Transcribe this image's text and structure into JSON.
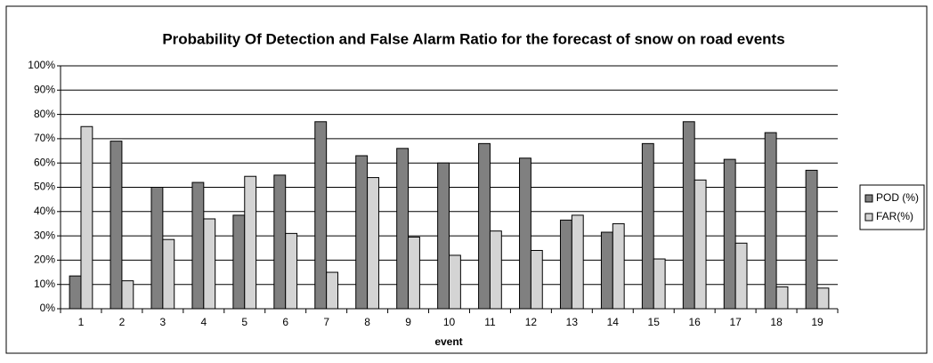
{
  "chart_data": {
    "type": "bar",
    "title": "Probability Of Detection and False Alarm Ratio for the forecast of snow on road events",
    "x_label": "event",
    "categories": [
      "1",
      "2",
      "3",
      "4",
      "5",
      "6",
      "7",
      "8",
      "9",
      "10",
      "11",
      "12",
      "13",
      "14",
      "15",
      "16",
      "17",
      "18",
      "19"
    ],
    "series": [
      {
        "name": "POD (%)",
        "color": "#808080",
        "values": [
          13.5,
          69,
          50,
          52,
          38.5,
          55,
          77,
          63,
          66,
          60,
          68,
          62,
          36.5,
          31.5,
          68,
          77,
          61.5,
          72.5,
          57
        ]
      },
      {
        "name": "FAR(%)",
        "color": "#d4d4d4",
        "values": [
          75,
          11.5,
          28.5,
          37,
          54.5,
          31,
          15,
          54,
          29.5,
          22,
          32,
          24,
          38.5,
          35,
          20.5,
          53,
          27,
          9,
          8.5
        ]
      }
    ],
    "ylim": [
      0,
      100
    ],
    "yticks": [
      {
        "value": 0,
        "label": "0%"
      },
      {
        "value": 10,
        "label": "10%"
      },
      {
        "value": 20,
        "label": "20%"
      },
      {
        "value": 30,
        "label": "30%"
      },
      {
        "value": 40,
        "label": "40%"
      },
      {
        "value": 50,
        "label": "50%"
      },
      {
        "value": 60,
        "label": "60%"
      },
      {
        "value": 70,
        "label": "70%"
      },
      {
        "value": 80,
        "label": "80%"
      },
      {
        "value": 90,
        "label": "90%"
      },
      {
        "value": 100,
        "label": "100%"
      }
    ],
    "grid": true,
    "legend": "right"
  }
}
